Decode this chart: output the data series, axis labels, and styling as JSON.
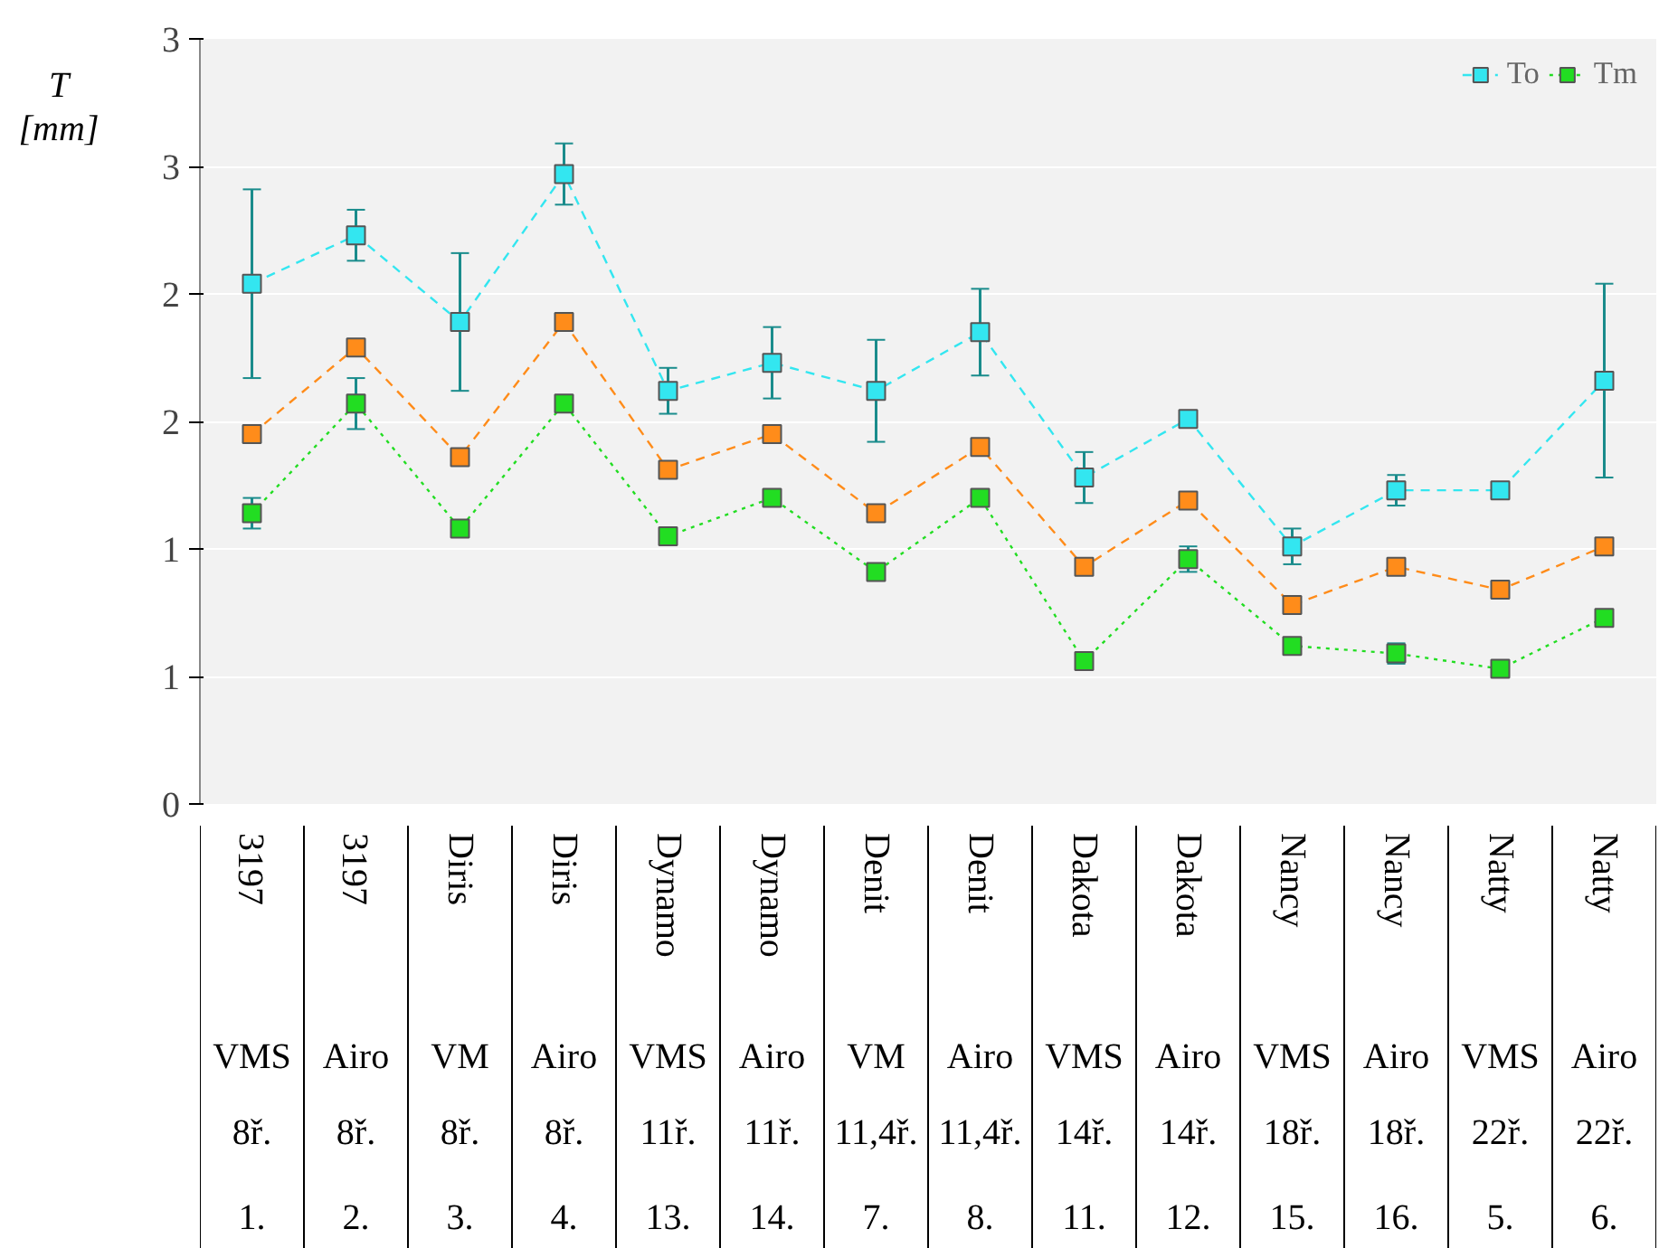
{
  "chart_data": {
    "type": "line",
    "ylabel": "T\n[mm]",
    "categories": [
      "3197\nVMS\n8ř.\n1.",
      "3197\nAiro\n8ř.\n2.",
      "Diris\nVM\n8ř.\n3.",
      "Diris\nAiro\n8ř.\n4.",
      "Dynamo\nVMS\n11ř.\n13.",
      "Dynamo\nAiro\n11ř.\n14.",
      "Denit\nVM\n11,4ř.\n7.",
      "Denit\nAiro\n11,4ř.\n8.",
      "Dakota\nVMS\n14ř.\n11.",
      "Dakota\nAiro\n14ř.\n12.",
      "Nancy\nVMS\n18ř.\n15.",
      "Nancy\nAiro\n18ř.\n16.",
      "Natty\nVMS\n22ř.\n5.",
      "Natty\nAiro\n22ř.\n6."
    ],
    "series": [
      {
        "color": "#ff8c1a",
        "line_style": "dashed",
        "values": [
          1.45,
          1.79,
          1.36,
          1.89,
          1.31,
          1.45,
          1.14,
          1.4,
          0.93,
          1.19,
          0.78,
          0.93,
          0.84,
          1.01
        ]
      },
      {
        "name": "To",
        "color": "#33e6f0",
        "line_style": "dashed",
        "values": [
          2.04,
          2.23,
          1.89,
          2.47,
          1.62,
          1.73,
          1.62,
          1.85,
          1.28,
          1.51,
          1.01,
          1.23,
          1.23,
          1.66
        ],
        "errors": [
          0.37,
          0.1,
          0.27,
          0.12,
          0.09,
          0.14,
          0.2,
          0.17,
          0.1,
          null,
          0.07,
          0.06,
          null,
          0.38
        ]
      },
      {
        "name": "Tm",
        "color": "#22dd22",
        "line_style": "dotted",
        "values": [
          1.14,
          1.57,
          1.08,
          1.57,
          1.05,
          1.2,
          0.91,
          1.2,
          0.56,
          0.96,
          0.62,
          0.59,
          0.53,
          0.73
        ],
        "errors": [
          0.06,
          0.1,
          null,
          null,
          null,
          null,
          null,
          null,
          null,
          0.05,
          null,
          0.04,
          null,
          null
        ]
      }
    ],
    "ylim": [
      0,
      3
    ],
    "yticks": [
      0,
      {
        "value": 0.5,
        "label": "1"
      },
      1,
      {
        "value": 1.5,
        "label": "2"
      },
      2,
      {
        "value": 2.5,
        "label": "3"
      },
      3
    ],
    "grid": "y",
    "legend": "top right",
    "marker": "square"
  }
}
